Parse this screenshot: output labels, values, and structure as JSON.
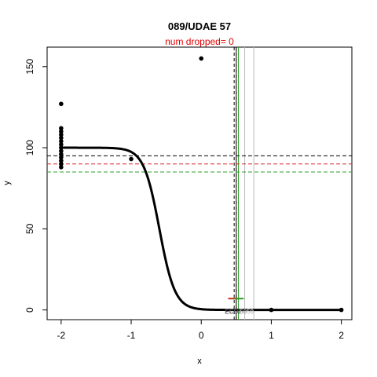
{
  "chart_data": {
    "type": "scatter",
    "title": "089/UDAE 57",
    "subtitle": "num dropped= 0",
    "xlabel": "x",
    "ylabel": "y",
    "xlim": [
      -2.2,
      2.15
    ],
    "ylim": [
      -6,
      162
    ],
    "x_ticks": [
      -2,
      -1,
      0,
      1,
      2
    ],
    "x_tick_labels": [
      "-2",
      "-1",
      "0",
      "1",
      "2"
    ],
    "y_ticks": [
      0,
      50,
      100,
      150
    ],
    "y_tick_labels": [
      "0",
      "50",
      "100",
      "150"
    ],
    "grid": false,
    "legend": "none",
    "points": [
      {
        "x": -2,
        "y": 127
      },
      {
        "x": -2,
        "y": 112
      },
      {
        "x": -2,
        "y": 110
      },
      {
        "x": -2,
        "y": 108
      },
      {
        "x": -2,
        "y": 106
      },
      {
        "x": -2,
        "y": 104
      },
      {
        "x": -2,
        "y": 102
      },
      {
        "x": -2,
        "y": 100
      },
      {
        "x": -2,
        "y": 98
      },
      {
        "x": -2,
        "y": 96
      },
      {
        "x": -2,
        "y": 94
      },
      {
        "x": -2,
        "y": 92
      },
      {
        "x": -2,
        "y": 90
      },
      {
        "x": -2,
        "y": 88
      },
      {
        "x": -1,
        "y": 93
      },
      {
        "x": 0,
        "y": 155
      },
      {
        "x": 1,
        "y": 0
      },
      {
        "x": 2,
        "y": 0
      }
    ],
    "fit_curve": {
      "top": 100,
      "bottom": 0,
      "ec50": 0.55,
      "hill": 9,
      "x_from": -2,
      "x_to": 2,
      "color": "#000000"
    },
    "horizontal_lines": [
      {
        "y": 95,
        "color": "#000000",
        "style": "dashed"
      },
      {
        "y": 90,
        "color": "#d62728",
        "style": "dashed"
      },
      {
        "y": 85,
        "color": "#2ca02c",
        "style": "dashed"
      }
    ],
    "vertical_lines": [
      {
        "x": 0.47,
        "color": "#000000",
        "style": "dashed"
      },
      {
        "x": 0.5,
        "color": "#d62728",
        "style": "dashed"
      },
      {
        "x": 0.53,
        "color": "#2ca02c",
        "style": "solid"
      },
      {
        "x": 0.5,
        "color": "#000000",
        "style": "solid"
      },
      {
        "x": 0.62,
        "color": "#bbbbbb",
        "style": "solid"
      },
      {
        "x": 0.75,
        "color": "#bbbbbb",
        "style": "solid"
      }
    ],
    "markers": [
      {
        "x": 0.44,
        "y": 7,
        "color": "#d62728"
      },
      {
        "x": 0.5,
        "y": 7,
        "color": "#8b6914"
      },
      {
        "x": 0.55,
        "y": 7,
        "color": "#2ca02c"
      }
    ],
    "annotations": [
      {
        "text": "EC50",
        "x": 0.45,
        "y": -1,
        "color": "#555555"
      },
      {
        "text": "50",
        "x": 0.6,
        "y": -1,
        "color": "#aaaaaa"
      },
      {
        "text": "50",
        "x": 0.7,
        "y": -1,
        "color": "#cccccc"
      }
    ]
  }
}
